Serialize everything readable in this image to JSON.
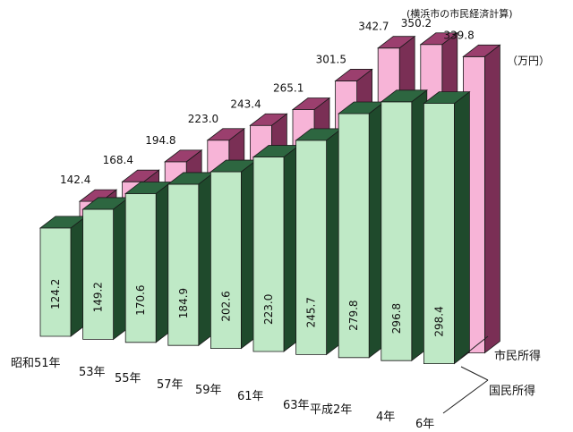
{
  "source_note": "(横浜市の市民経済計算)",
  "unit_label": "（万円）",
  "chart_data": {
    "type": "bar",
    "title": "",
    "categories": [
      "昭和51年",
      "53年",
      "55年",
      "57年",
      "59年",
      "61年",
      "63年",
      "平成2年",
      "4年",
      "6年"
    ],
    "series": [
      {
        "name": "国民所得",
        "values": [
          124.2,
          149.2,
          170.6,
          184.9,
          202.6,
          223.0,
          245.7,
          279.8,
          296.8,
          298.4
        ]
      },
      {
        "name": "市民所得",
        "values": [
          142.4,
          168.4,
          194.8,
          223.0,
          243.4,
          265.1,
          301.5,
          342.7,
          350.2,
          339.8
        ]
      }
    ],
    "value_labels": {
      "国民所得": [
        "124.2",
        "149.2",
        "170.6",
        "184.9",
        "202.6",
        "223.0",
        "245.7",
        "279.8",
        "296.8",
        "298.4"
      ],
      "市民所得": [
        "142.4",
        "168.4",
        "194.8",
        "223.0",
        "243.4",
        "265.1",
        "301.5",
        "342.7",
        "350.2",
        "339.8"
      ]
    },
    "ylim": [
      0,
      350
    ],
    "grid": false,
    "legend": "right",
    "colors": {
      "national_front": "#bfe9c6",
      "national_side": "#1f4a2c",
      "national_top": "#2d6640",
      "citizen_front": "#f7b4d7",
      "citizen_side": "#7a2f55",
      "citizen_top": "#9b3f6e"
    }
  }
}
